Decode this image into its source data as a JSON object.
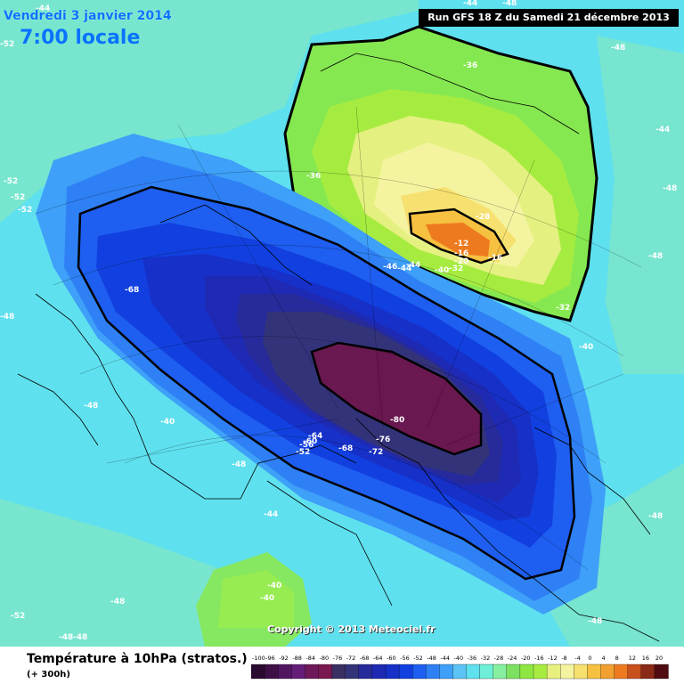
{
  "overlay": {
    "date": "Vendredi 3 janvier 2014",
    "time": "7:00 locale",
    "run": "Run GFS 18 Z du Samedi 21 décembre 2013",
    "copyright": "Copyright © 2013 Meteociel.fr"
  },
  "legend": {
    "title": "Température à 10hPa (stratos.)",
    "subtitle": "(+ 300h)",
    "ticks": [
      "-100",
      "-96",
      "-92",
      "-88",
      "-84",
      "-80",
      "-76",
      "-72",
      "-68",
      "-64",
      "-60",
      "-56",
      "-52",
      "-48",
      "-44",
      "-40",
      "-36",
      "-32",
      "-28",
      "-24",
      "-20",
      "-16",
      "-12",
      "-8",
      "-4",
      "0",
      "4",
      "8",
      "12",
      "16",
      "20"
    ],
    "colors": [
      "#2a0a30",
      "#3d1046",
      "#501660",
      "#641e78",
      "#6e1a5a",
      "#7a1850",
      "#3b2e62",
      "#33337a",
      "#262a9a",
      "#1e2ab4",
      "#1630c8",
      "#1240e0",
      "#1e5ef0",
      "#2f80f5",
      "#3ea0f8",
      "#5cc4f4",
      "#5fe0ee",
      "#6ef0d8",
      "#86f0a0",
      "#7ee060",
      "#8ee640",
      "#a8ec40",
      "#e8f080",
      "#f4f4a0",
      "#f6e070",
      "#f6c040",
      "#f2a030",
      "#ee7a20",
      "#c8501c",
      "#8a2a18",
      "#500c10"
    ]
  },
  "map": {
    "labels": [
      {
        "text": "-68"
      },
      {
        "text": "-80"
      },
      {
        "text": "-76"
      },
      {
        "text": "-72"
      },
      {
        "text": "-68"
      },
      {
        "text": "-64"
      },
      {
        "text": "-60"
      },
      {
        "text": "-56"
      },
      {
        "text": "-52"
      },
      {
        "text": "-48"
      },
      {
        "text": "-48"
      },
      {
        "text": "-40"
      },
      {
        "text": "-44"
      },
      {
        "text": "-40"
      },
      {
        "text": "-40"
      },
      {
        "text": "-48"
      },
      {
        "text": "-52"
      },
      {
        "text": "-48"
      },
      {
        "text": "-48"
      },
      {
        "text": "-36"
      },
      {
        "text": "-36"
      },
      {
        "text": "-28"
      },
      {
        "text": "-12"
      },
      {
        "text": "-16"
      },
      {
        "text": "-16"
      },
      {
        "text": "-20"
      },
      {
        "text": "-32"
      },
      {
        "text": "-32"
      },
      {
        "text": "-40"
      },
      {
        "text": "-44"
      },
      {
        "text": "-48"
      },
      {
        "text": "-48"
      },
      {
        "text": "-48"
      },
      {
        "text": "-44"
      },
      {
        "text": "-48"
      },
      {
        "text": "-52"
      },
      {
        "text": "-52"
      },
      {
        "text": "-52"
      },
      {
        "text": "-48"
      },
      {
        "text": "-52"
      },
      {
        "text": "-48"
      },
      {
        "text": "-48"
      },
      {
        "text": "-44"
      },
      {
        "text": "-40"
      },
      {
        "text": "-44"
      },
      {
        "text": "-46"
      },
      {
        "text": "-44"
      }
    ]
  }
}
